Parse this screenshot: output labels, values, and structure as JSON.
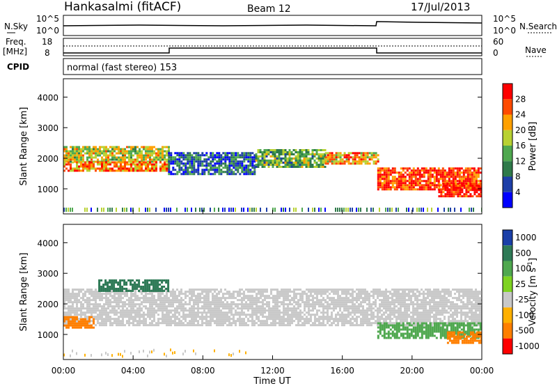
{
  "header": {
    "station": "Hankasalmi (fitACF)",
    "beam": "Beam 12",
    "date": "17/Jul/2013"
  },
  "status_panels": {
    "nsky_label": "N.Sky",
    "nsky_ticks": [
      "10^5",
      "10^0"
    ],
    "nsearch_label": "N.Search",
    "nsearch_ticks": [
      "10^5",
      "10^0"
    ],
    "freq_label": "Freq.",
    "freq_unit": "[MHz]",
    "freq_ticks": [
      "18",
      "8"
    ],
    "nave_label": "Nave",
    "nave_ticks": [
      "60",
      "0"
    ],
    "cpid_label": "CPID",
    "cpid_text": "normal (fast stereo) 153"
  },
  "chart_data": [
    {
      "type": "heatmap",
      "name": "power",
      "ylabel": "Slant Range [km]",
      "ylim": [
        180,
        4600
      ],
      "yticks": [
        "4000",
        "3000",
        "2000",
        "1000"
      ],
      "ytick_values": [
        4000,
        3000,
        2000,
        1000
      ],
      "colorbar": {
        "label": "Power [dB]",
        "ticks": [
          "28",
          "24",
          "20",
          "16",
          "12",
          "8",
          "4"
        ],
        "tick_values": [
          28,
          24,
          20,
          16,
          12,
          8,
          4
        ],
        "range": [
          0,
          32
        ],
        "colors": [
          "#0000ff",
          "#1e3fa8",
          "#2f7a4a",
          "#4fa84f",
          "#b8d132",
          "#ffa000",
          "#ff4a00",
          "#ff0000"
        ]
      },
      "bands": [
        {
          "t0": 0.0,
          "t1": 6.0,
          "r0": 1900,
          "r1": 2400,
          "value": 18
        },
        {
          "t0": 0.0,
          "t1": 6.0,
          "r0": 1600,
          "r1": 1900,
          "value": 24
        },
        {
          "t0": 6.0,
          "t1": 11.0,
          "r0": 1500,
          "r1": 2200,
          "value": 8
        },
        {
          "t0": 11.0,
          "t1": 15.0,
          "r0": 1700,
          "r1": 2300,
          "value": 14
        },
        {
          "t0": 15.0,
          "t1": 18.0,
          "r0": 1800,
          "r1": 2200,
          "value": 22
        },
        {
          "t0": 18.0,
          "t1": 24.0,
          "r0": 1000,
          "r1": 1700,
          "value": 28
        },
        {
          "t0": 21.5,
          "t1": 24.0,
          "r0": 750,
          "r1": 1200,
          "value": 30
        }
      ]
    },
    {
      "type": "heatmap",
      "name": "velocity",
      "ylabel": "Slant Range [km]",
      "xlabel": "Time UT",
      "xlim": [
        0,
        24
      ],
      "xticks": [
        "00:00",
        "04:00",
        "08:00",
        "12:00",
        "16:00",
        "20:00",
        "00:00"
      ],
      "xtick_values": [
        0,
        4,
        8,
        12,
        16,
        20,
        24
      ],
      "ylim": [
        180,
        4600
      ],
      "yticks": [
        "4000",
        "3000",
        "2000",
        "1000"
      ],
      "ytick_values": [
        4000,
        3000,
        2000,
        1000
      ],
      "colorbar": {
        "label": "Velocity [m s^-1]",
        "ticks": [
          "1000",
          "500",
          "100",
          "25",
          "-25",
          "-100",
          "-500",
          "-1000"
        ],
        "colors": [
          "#1a3fa8",
          "#2e7a56",
          "#4fa84f",
          "#7ed321",
          "#c8c8c8",
          "#ffb000",
          "#ff7f00",
          "#ff0000"
        ]
      },
      "bands": [
        {
          "t0": 0.0,
          "t1": 24.0,
          "r0": 1300,
          "r1": 2500,
          "value": "-25"
        },
        {
          "t0": 0.0,
          "t1": 1.7,
          "r0": 1200,
          "r1": 1600,
          "value": "-500"
        },
        {
          "t0": 2.0,
          "t1": 6.0,
          "r0": 2400,
          "r1": 2800,
          "value": "500"
        },
        {
          "t0": 18.0,
          "t1": 24.0,
          "r0": 900,
          "r1": 1400,
          "value": "100"
        },
        {
          "t0": 22.0,
          "t1": 24.0,
          "r0": 700,
          "r1": 1100,
          "value": "-500"
        }
      ]
    }
  ]
}
